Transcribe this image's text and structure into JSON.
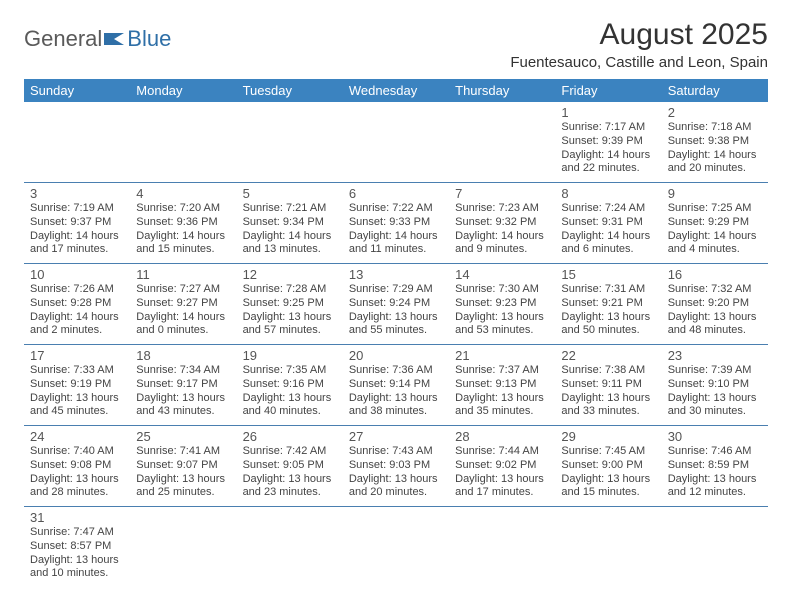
{
  "brand": {
    "part1": "General",
    "part2": "Blue"
  },
  "title": "August 2025",
  "location": "Fuentesauco, Castille and Leon, Spain",
  "colors": {
    "header_bg": "#3b83c0",
    "header_text": "#ffffff",
    "row_divider": "#4a7fb0",
    "text": "#333333",
    "brand_gray": "#5a5a5a",
    "brand_blue": "#2f6fa7"
  },
  "day_headers": [
    "Sunday",
    "Monday",
    "Tuesday",
    "Wednesday",
    "Thursday",
    "Friday",
    "Saturday"
  ],
  "weeks": [
    [
      null,
      null,
      null,
      null,
      null,
      {
        "d": "1",
        "sr": "Sunrise: 7:17 AM",
        "ss": "Sunset: 9:39 PM",
        "dl1": "Daylight: 14 hours",
        "dl2": "and 22 minutes."
      },
      {
        "d": "2",
        "sr": "Sunrise: 7:18 AM",
        "ss": "Sunset: 9:38 PM",
        "dl1": "Daylight: 14 hours",
        "dl2": "and 20 minutes."
      }
    ],
    [
      {
        "d": "3",
        "sr": "Sunrise: 7:19 AM",
        "ss": "Sunset: 9:37 PM",
        "dl1": "Daylight: 14 hours",
        "dl2": "and 17 minutes."
      },
      {
        "d": "4",
        "sr": "Sunrise: 7:20 AM",
        "ss": "Sunset: 9:36 PM",
        "dl1": "Daylight: 14 hours",
        "dl2": "and 15 minutes."
      },
      {
        "d": "5",
        "sr": "Sunrise: 7:21 AM",
        "ss": "Sunset: 9:34 PM",
        "dl1": "Daylight: 14 hours",
        "dl2": "and 13 minutes."
      },
      {
        "d": "6",
        "sr": "Sunrise: 7:22 AM",
        "ss": "Sunset: 9:33 PM",
        "dl1": "Daylight: 14 hours",
        "dl2": "and 11 minutes."
      },
      {
        "d": "7",
        "sr": "Sunrise: 7:23 AM",
        "ss": "Sunset: 9:32 PM",
        "dl1": "Daylight: 14 hours",
        "dl2": "and 9 minutes."
      },
      {
        "d": "8",
        "sr": "Sunrise: 7:24 AM",
        "ss": "Sunset: 9:31 PM",
        "dl1": "Daylight: 14 hours",
        "dl2": "and 6 minutes."
      },
      {
        "d": "9",
        "sr": "Sunrise: 7:25 AM",
        "ss": "Sunset: 9:29 PM",
        "dl1": "Daylight: 14 hours",
        "dl2": "and 4 minutes."
      }
    ],
    [
      {
        "d": "10",
        "sr": "Sunrise: 7:26 AM",
        "ss": "Sunset: 9:28 PM",
        "dl1": "Daylight: 14 hours",
        "dl2": "and 2 minutes."
      },
      {
        "d": "11",
        "sr": "Sunrise: 7:27 AM",
        "ss": "Sunset: 9:27 PM",
        "dl1": "Daylight: 14 hours",
        "dl2": "and 0 minutes."
      },
      {
        "d": "12",
        "sr": "Sunrise: 7:28 AM",
        "ss": "Sunset: 9:25 PM",
        "dl1": "Daylight: 13 hours",
        "dl2": "and 57 minutes."
      },
      {
        "d": "13",
        "sr": "Sunrise: 7:29 AM",
        "ss": "Sunset: 9:24 PM",
        "dl1": "Daylight: 13 hours",
        "dl2": "and 55 minutes."
      },
      {
        "d": "14",
        "sr": "Sunrise: 7:30 AM",
        "ss": "Sunset: 9:23 PM",
        "dl1": "Daylight: 13 hours",
        "dl2": "and 53 minutes."
      },
      {
        "d": "15",
        "sr": "Sunrise: 7:31 AM",
        "ss": "Sunset: 9:21 PM",
        "dl1": "Daylight: 13 hours",
        "dl2": "and 50 minutes."
      },
      {
        "d": "16",
        "sr": "Sunrise: 7:32 AM",
        "ss": "Sunset: 9:20 PM",
        "dl1": "Daylight: 13 hours",
        "dl2": "and 48 minutes."
      }
    ],
    [
      {
        "d": "17",
        "sr": "Sunrise: 7:33 AM",
        "ss": "Sunset: 9:19 PM",
        "dl1": "Daylight: 13 hours",
        "dl2": "and 45 minutes."
      },
      {
        "d": "18",
        "sr": "Sunrise: 7:34 AM",
        "ss": "Sunset: 9:17 PM",
        "dl1": "Daylight: 13 hours",
        "dl2": "and 43 minutes."
      },
      {
        "d": "19",
        "sr": "Sunrise: 7:35 AM",
        "ss": "Sunset: 9:16 PM",
        "dl1": "Daylight: 13 hours",
        "dl2": "and 40 minutes."
      },
      {
        "d": "20",
        "sr": "Sunrise: 7:36 AM",
        "ss": "Sunset: 9:14 PM",
        "dl1": "Daylight: 13 hours",
        "dl2": "and 38 minutes."
      },
      {
        "d": "21",
        "sr": "Sunrise: 7:37 AM",
        "ss": "Sunset: 9:13 PM",
        "dl1": "Daylight: 13 hours",
        "dl2": "and 35 minutes."
      },
      {
        "d": "22",
        "sr": "Sunrise: 7:38 AM",
        "ss": "Sunset: 9:11 PM",
        "dl1": "Daylight: 13 hours",
        "dl2": "and 33 minutes."
      },
      {
        "d": "23",
        "sr": "Sunrise: 7:39 AM",
        "ss": "Sunset: 9:10 PM",
        "dl1": "Daylight: 13 hours",
        "dl2": "and 30 minutes."
      }
    ],
    [
      {
        "d": "24",
        "sr": "Sunrise: 7:40 AM",
        "ss": "Sunset: 9:08 PM",
        "dl1": "Daylight: 13 hours",
        "dl2": "and 28 minutes."
      },
      {
        "d": "25",
        "sr": "Sunrise: 7:41 AM",
        "ss": "Sunset: 9:07 PM",
        "dl1": "Daylight: 13 hours",
        "dl2": "and 25 minutes."
      },
      {
        "d": "26",
        "sr": "Sunrise: 7:42 AM",
        "ss": "Sunset: 9:05 PM",
        "dl1": "Daylight: 13 hours",
        "dl2": "and 23 minutes."
      },
      {
        "d": "27",
        "sr": "Sunrise: 7:43 AM",
        "ss": "Sunset: 9:03 PM",
        "dl1": "Daylight: 13 hours",
        "dl2": "and 20 minutes."
      },
      {
        "d": "28",
        "sr": "Sunrise: 7:44 AM",
        "ss": "Sunset: 9:02 PM",
        "dl1": "Daylight: 13 hours",
        "dl2": "and 17 minutes."
      },
      {
        "d": "29",
        "sr": "Sunrise: 7:45 AM",
        "ss": "Sunset: 9:00 PM",
        "dl1": "Daylight: 13 hours",
        "dl2": "and 15 minutes."
      },
      {
        "d": "30",
        "sr": "Sunrise: 7:46 AM",
        "ss": "Sunset: 8:59 PM",
        "dl1": "Daylight: 13 hours",
        "dl2": "and 12 minutes."
      }
    ],
    [
      {
        "d": "31",
        "sr": "Sunrise: 7:47 AM",
        "ss": "Sunset: 8:57 PM",
        "dl1": "Daylight: 13 hours",
        "dl2": "and 10 minutes."
      },
      null,
      null,
      null,
      null,
      null,
      null
    ]
  ]
}
